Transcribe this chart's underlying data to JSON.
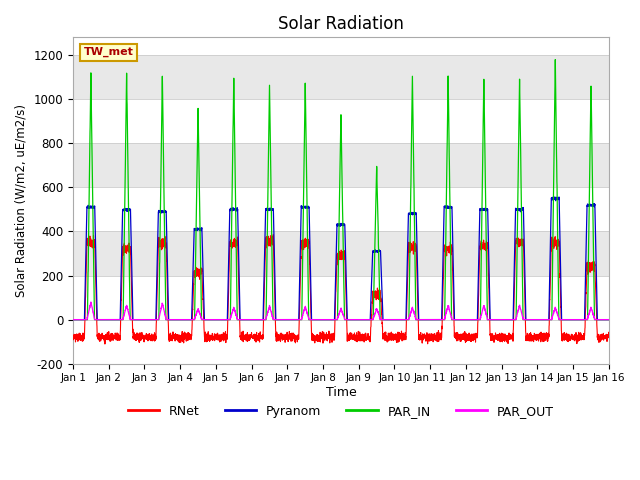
{
  "title": "Solar Radiation",
  "ylabel": "Solar Radiation (W/m2, uE/m2/s)",
  "xlabel": "Time",
  "station_label": "TW_met",
  "ylim": [
    -200,
    1280
  ],
  "yticks": [
    -200,
    0,
    200,
    400,
    600,
    800,
    1000,
    1200
  ],
  "days": 15,
  "points_per_day": 288,
  "series_colors": {
    "RNet": "#ff0000",
    "Pyranom": "#0000cc",
    "PAR_IN": "#00cc00",
    "PAR_OUT": "#ff00ff"
  },
  "day_peaks": {
    "PAR_IN": [
      1120,
      1120,
      1110,
      960,
      1100,
      1060,
      1080,
      940,
      700,
      1100,
      1100,
      1090,
      1090,
      1180,
      1070
    ],
    "Pyranom": [
      510,
      500,
      490,
      410,
      500,
      500,
      510,
      430,
      310,
      480,
      510,
      500,
      500,
      550,
      520
    ],
    "RNet": [
      350,
      320,
      340,
      210,
      350,
      350,
      350,
      290,
      110,
      330,
      320,
      330,
      350,
      350,
      240
    ],
    "PAR_OUT": [
      80,
      65,
      75,
      50,
      55,
      60,
      60,
      50,
      50,
      55,
      65,
      65,
      65,
      55,
      55
    ]
  },
  "night_rnet": -80,
  "background_color": "#ffffff",
  "plot_bg_color": "#ffffff",
  "band_color": "#e8e8e8",
  "band_ranges": [
    [
      200,
      400
    ],
    [
      600,
      800
    ],
    [
      1000,
      1200
    ]
  ],
  "grid_y_color": "#cccccc"
}
